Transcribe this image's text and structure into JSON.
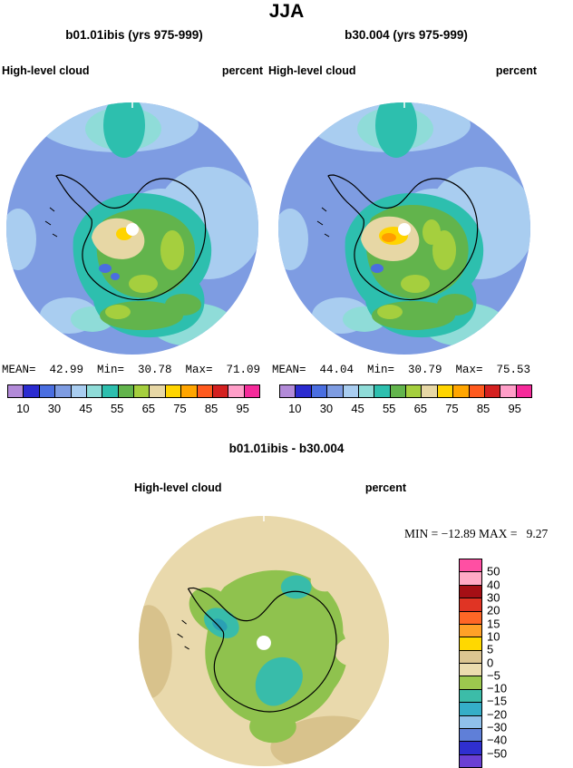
{
  "title": "JJA",
  "panels": [
    {
      "subtitle": "b01.01ibis (yrs 975-999)",
      "field_label": "High-level cloud",
      "units": "percent",
      "stats_text": "MEAN=  42.99  Min=  30.78  Max=  71.09"
    },
    {
      "subtitle": "b30.004 (yrs 975-999)",
      "field_label": "High-level cloud",
      "units": "percent",
      "stats_text": "MEAN=  44.04  Min=  30.79  Max=  75.53"
    }
  ],
  "colorbar": {
    "tick_labels": [
      "10",
      "30",
      "45",
      "55",
      "65",
      "75",
      "85",
      "95"
    ],
    "colors": [
      "#b28ad8",
      "#2b2bd0",
      "#4a6ee0",
      "#7e9ce2",
      "#a9cdf0",
      "#8fdcd8",
      "#2dbfae",
      "#62b44c",
      "#a5cf3e",
      "#e7d7a5",
      "#ffd400",
      "#ffa500",
      "#ff5a1e",
      "#d42020",
      "#ff9ec8",
      "#f52a9a"
    ]
  },
  "diff": {
    "title": "b01.01ibis - b30.004",
    "field_label": "High-level cloud",
    "units": "percent",
    "minmax_text": "MIN = −12.89 MAX =   9.27",
    "colorbar": {
      "tick_labels": [
        "50",
        "40",
        "30",
        "20",
        "15",
        "10",
        "5",
        "0",
        "−5",
        "−10",
        "−15",
        "−20",
        "−30",
        "−40",
        "−50"
      ],
      "colors": [
        "#ff4fa3",
        "#ffaac6",
        "#a50f15",
        "#e03424",
        "#ff6726",
        "#ffa127",
        "#ffd800",
        "#dcc591",
        "#ecdcae",
        "#9cc84e",
        "#3cbca8",
        "#35aec8",
        "#8fc0ea",
        "#5f7fd8",
        "#2f2fd0",
        "#6a3fd4"
      ]
    }
  },
  "chart_data": [
    {
      "type": "heatmap",
      "subtype": "filled-contour-map",
      "projection": "south-polar-stereographic",
      "region": "Antarctica / Southern Ocean",
      "title": "b01.01ibis (yrs 975-999)",
      "season": "JJA",
      "variable": "High-level cloud",
      "units": "percent",
      "contour_boundaries": [
        10,
        20,
        30,
        40,
        45,
        50,
        55,
        60,
        65,
        70,
        75,
        80,
        85,
        90,
        95
      ],
      "tick_labels_shown": [
        10,
        30,
        45,
        55,
        65,
        75,
        85,
        95
      ],
      "stats": {
        "mean": 42.99,
        "min": 30.78,
        "max": 71.09
      },
      "legend_position": "bottom"
    },
    {
      "type": "heatmap",
      "subtype": "filled-contour-map",
      "projection": "south-polar-stereographic",
      "region": "Antarctica / Southern Ocean",
      "title": "b30.004 (yrs 975-999)",
      "season": "JJA",
      "variable": "High-level cloud",
      "units": "percent",
      "contour_boundaries": [
        10,
        20,
        30,
        40,
        45,
        50,
        55,
        60,
        65,
        70,
        75,
        80,
        85,
        90,
        95
      ],
      "tick_labels_shown": [
        10,
        30,
        45,
        55,
        65,
        75,
        85,
        95
      ],
      "stats": {
        "mean": 44.04,
        "min": 30.79,
        "max": 75.53
      },
      "legend_position": "bottom"
    },
    {
      "type": "heatmap",
      "subtype": "filled-contour-difference-map",
      "projection": "south-polar-stereographic",
      "region": "Antarctica / Southern Ocean",
      "title": "b01.01ibis - b30.004",
      "season": "JJA",
      "variable": "High-level cloud difference",
      "units": "percent",
      "contour_boundaries": [
        -50,
        -40,
        -30,
        -20,
        -15,
        -10,
        -5,
        0,
        5,
        10,
        15,
        20,
        30,
        40,
        50
      ],
      "stats": {
        "min": -12.89,
        "max": 9.27
      },
      "legend_position": "right"
    }
  ]
}
